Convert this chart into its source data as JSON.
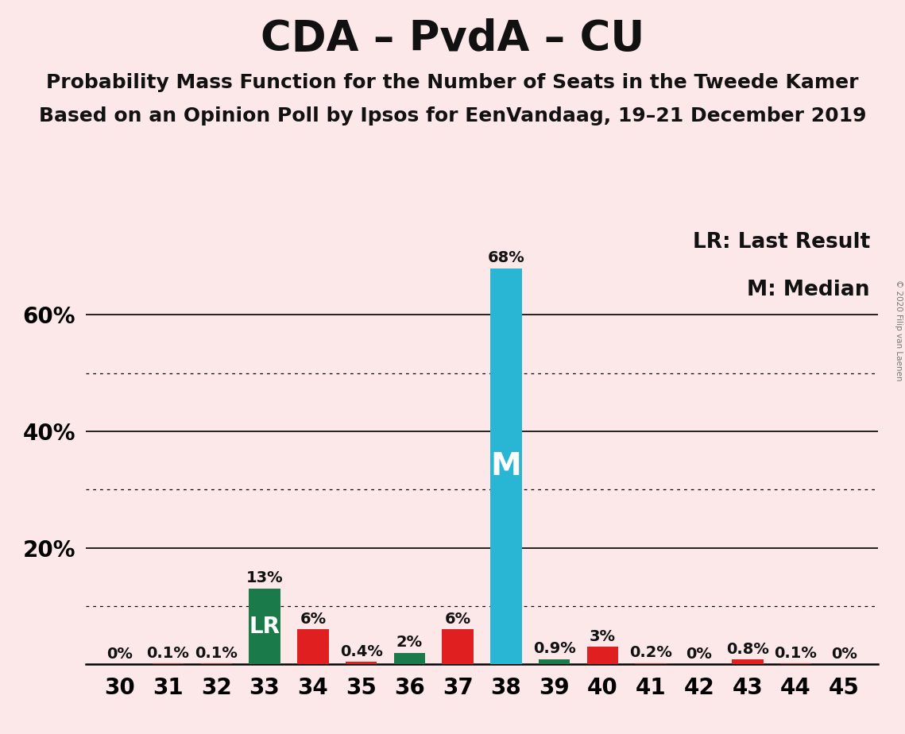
{
  "title": "CDA – PvdA – CU",
  "subtitle1": "Probability Mass Function for the Number of Seats in the Tweede Kamer",
  "subtitle2": "Based on an Opinion Poll by Ipsos for EenVandaag, 19–21 December 2019",
  "copyright": "© 2020 Filip van Laenen",
  "legend_lr": "LR: Last Result",
  "legend_m": "M: Median",
  "seats": [
    30,
    31,
    32,
    33,
    34,
    35,
    36,
    37,
    38,
    39,
    40,
    41,
    42,
    43,
    44,
    45
  ],
  "values": [
    0.0,
    0.1,
    0.1,
    13.0,
    6.0,
    0.4,
    2.0,
    6.0,
    68.0,
    0.9,
    3.0,
    0.2,
    0.0,
    0.8,
    0.1,
    0.0
  ],
  "bar_colors": [
    "#e02020",
    "#e02020",
    "#e02020",
    "#1a7a4a",
    "#e02020",
    "#e02020",
    "#1a7a4a",
    "#e02020",
    "#29b6d5",
    "#1a7a4a",
    "#e02020",
    "#e02020",
    "#e02020",
    "#e02020",
    "#e02020",
    "#e02020"
  ],
  "lr_seat": 33,
  "median_seat": 38,
  "background_color": "#fce8e8",
  "bar_width": 0.65,
  "ylim_max": 75,
  "solid_grid": [
    20,
    40,
    60
  ],
  "dotted_grid": [
    10,
    30,
    50
  ],
  "title_fontsize": 38,
  "subtitle_fontsize": 18,
  "tick_fontsize": 20,
  "annotation_fontsize": 14,
  "legend_fontsize": 19,
  "label_inside_lr_fontsize": 20,
  "label_inside_m_fontsize": 28
}
